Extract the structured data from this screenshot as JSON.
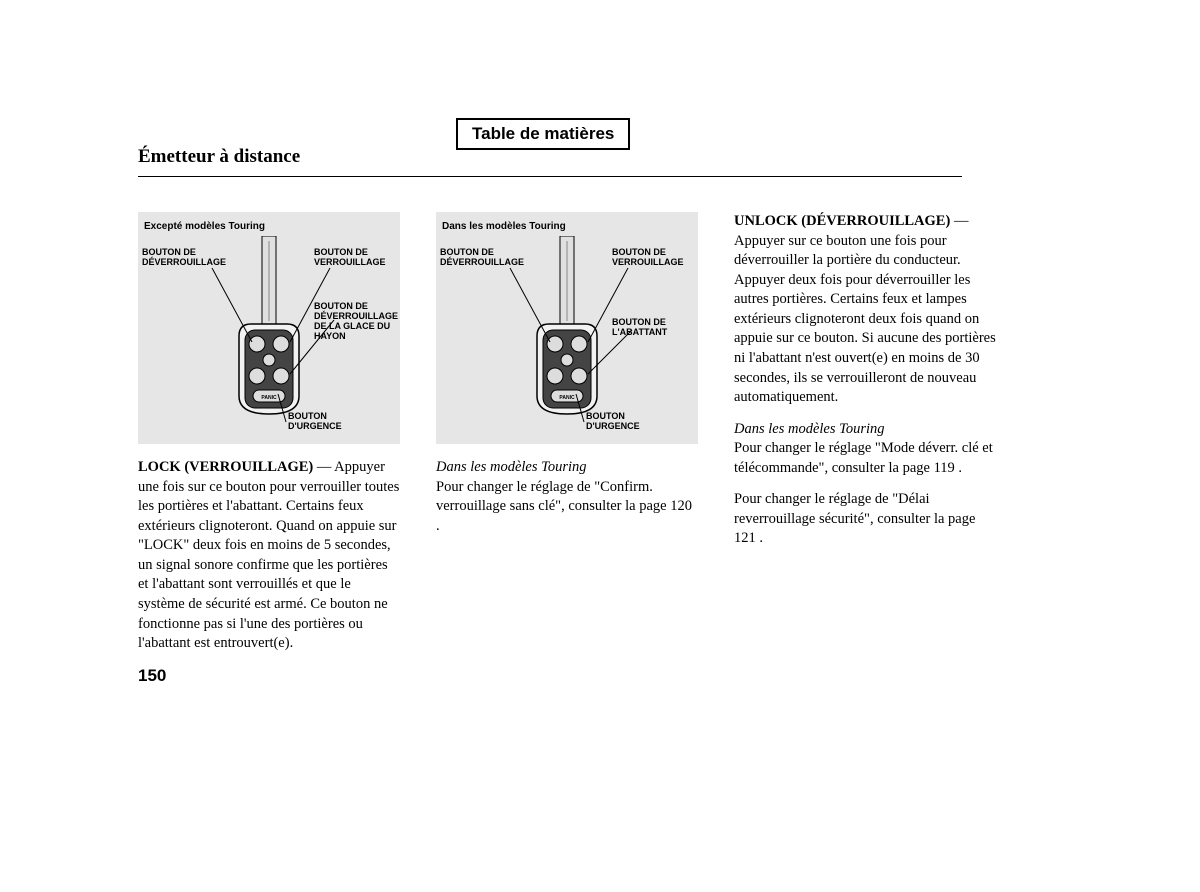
{
  "toc_label": "Table de matières",
  "page_title": "Émetteur à distance",
  "page_number": "150",
  "diagram1": {
    "caption": "Excepté modèles Touring",
    "labels": {
      "unlock": "BOUTON DE\nDÉVERROUILLAGE",
      "lock": "BOUTON DE\nVERROUILLAGE",
      "glass": "BOUTON DE\nDÉVERROUILLAGE\nDE LA GLACE DU\nHAYON",
      "panic": "BOUTON\nD'URGENCE"
    }
  },
  "diagram2": {
    "caption": "Dans les modèles Touring",
    "labels": {
      "unlock": "BOUTON DE\nDÉVERROUILLAGE",
      "lock": "BOUTON DE\nVERROUILLAGE",
      "tailgate": "BOUTON DE\nL'ABATTANT",
      "panic": "BOUTON\nD'URGENCE"
    }
  },
  "col1": {
    "lock_heading": "LOCK (VERROUILLAGE)",
    "lock_text": " — Appuyer une fois sur ce bouton pour verrouiller toutes les portières et l'abattant. Certains feux extérieurs clignoteront. Quand on appuie sur \"LOCK\" deux fois en moins de 5 secondes, un signal sonore confirme que les portières et l'abattant sont verrouillés et que le système de sécurité est armé. Ce bouton ne fonctionne pas si l'une des portières ou l'abattant est entrouvert(e)."
  },
  "col2": {
    "note_heading": "Dans les modèles Touring",
    "note_text": "Pour changer le réglage de \"Confirm. verrouillage sans clé\", consulter la page 120 ."
  },
  "col3": {
    "unlock_heading": "UNLOCK (DÉVERROUILLAGE)",
    "unlock_text": " — Appuyer sur ce bouton une fois pour déverrouiller la portière du conducteur. Appuyer deux fois pour déverrouiller les autres portières. Certains feux et lampes extérieurs clignoteront deux fois quand on appuie sur ce bouton. Si aucune des portières ni l'abattant n'est ouvert(e) en moins de 30 secondes, ils se verrouilleront de nouveau automatiquement.",
    "note1_heading": "Dans les modèles Touring",
    "note1_text": "Pour changer le réglage \"Mode déverr. clé et télécommande\", consulter la page 119 .",
    "note2_text": "Pour changer le réglage de \"Délai reverrouillage sécurité\", consulter la page  121 ."
  },
  "colors": {
    "diagram_bg": "#e6e6e6",
    "text": "#000000",
    "page_bg": "#ffffff"
  }
}
